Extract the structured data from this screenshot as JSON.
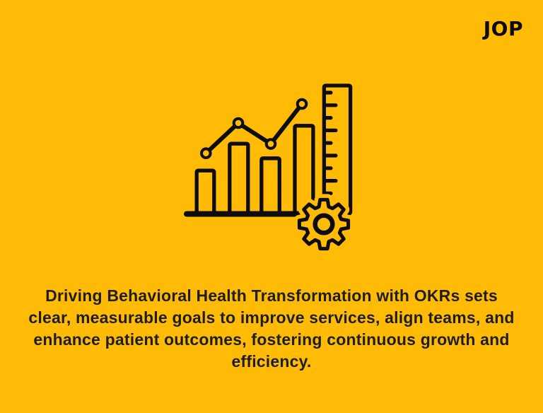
{
  "page": {
    "background_color": "#FFBB05",
    "icon_color": "#0D0D0D",
    "text_color": "#1E1E1E",
    "logo_color": "#0B0B0B"
  },
  "logo": {
    "text": "JOP"
  },
  "illustration": {
    "name": "growth-analytics-illustration",
    "parts": [
      "bar-chart-icon",
      "trend-line-icon",
      "ruler-icon",
      "gear-icon"
    ],
    "bars_count": 4,
    "trend_points": 4
  },
  "caption": {
    "lines": [
      "Driving Behavioral Health Transformation with OKRs sets",
      "clear, measurable goals to improve services, align teams, and",
      "enhance patient outcomes, fostering continuous growth and",
      "efficiency."
    ]
  }
}
